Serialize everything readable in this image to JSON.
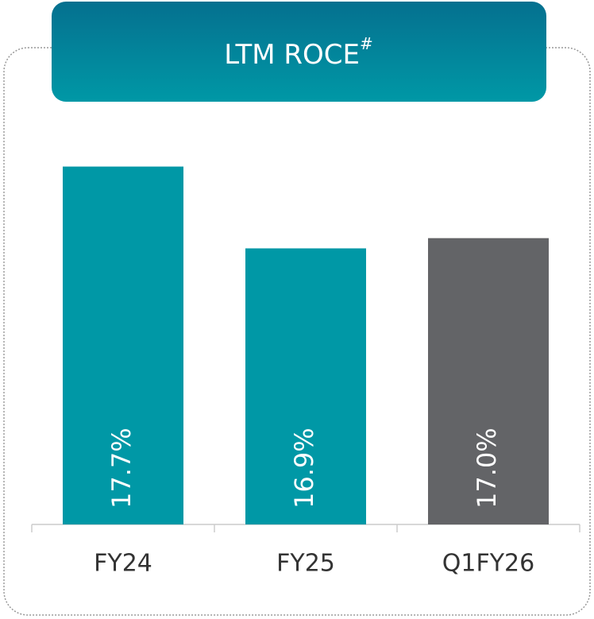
{
  "chart_data": {
    "type": "bar",
    "title": "LTM ROCE",
    "title_superscript": "#",
    "categories": [
      "FY24",
      "FY25",
      "Q1FY26"
    ],
    "values": [
      17.7,
      16.9,
      17.0
    ],
    "value_labels": [
      "17.7%",
      "16.9%",
      "17.0%"
    ],
    "colors": [
      "#0098a6",
      "#0098a6",
      "#636467"
    ],
    "ylim": [
      14.2,
      18
    ]
  }
}
